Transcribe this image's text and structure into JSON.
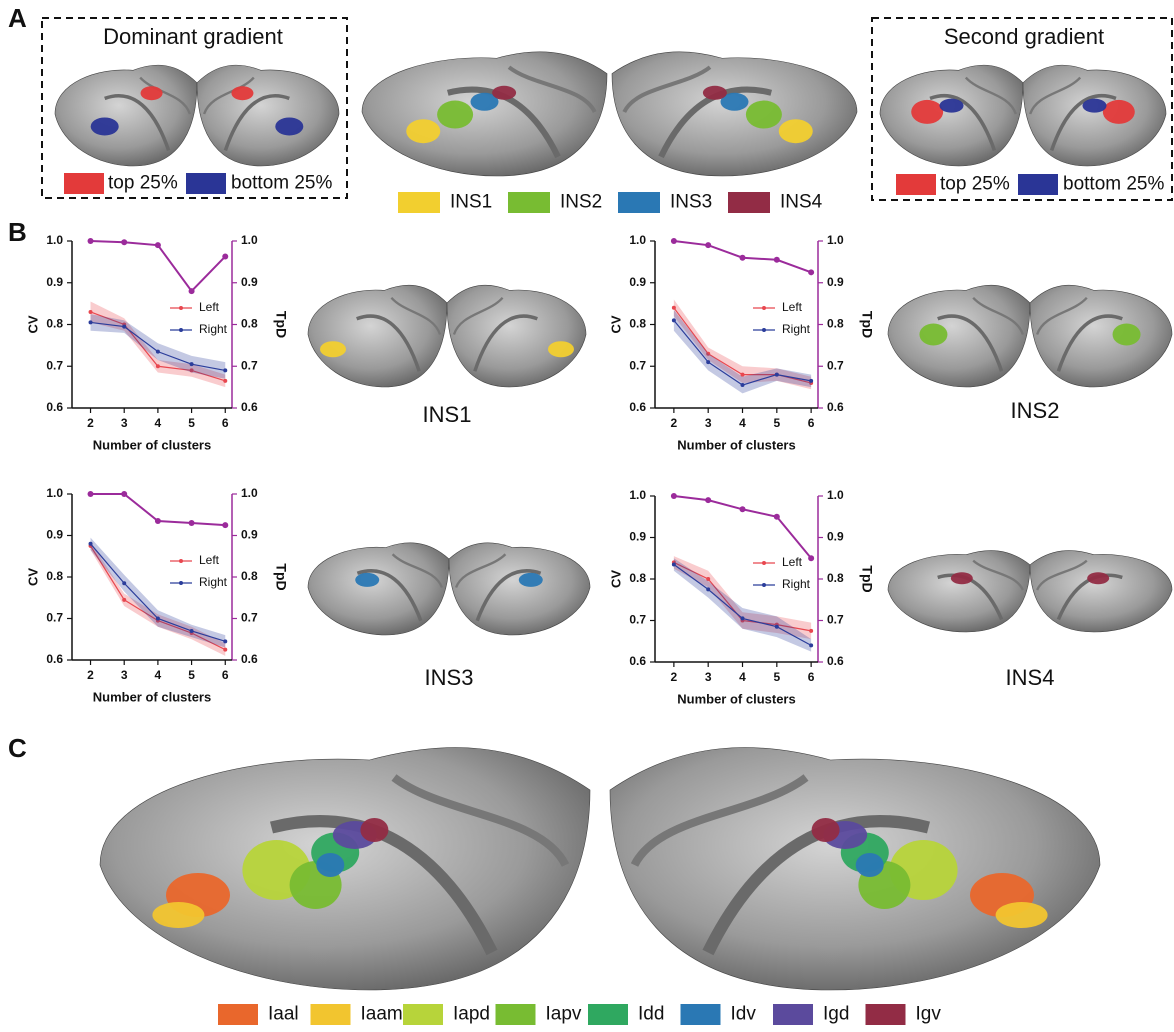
{
  "panel_labels": [
    "A",
    "B",
    "C"
  ],
  "panel_a": {
    "dominant": {
      "title": "Dominant gradient",
      "legend": [
        {
          "name": "top 25%",
          "color": "#e33a3a"
        },
        {
          "name": "bottom 25%",
          "color": "#2a3596"
        }
      ]
    },
    "second": {
      "title": "Second gradient",
      "legend": [
        {
          "name": "top 25%",
          "color": "#e33a3a"
        },
        {
          "name": "bottom 25%",
          "color": "#2a3596"
        }
      ]
    },
    "ins_legend": [
      {
        "name": "INS1",
        "color": "#f2cf2f"
      },
      {
        "name": "INS2",
        "color": "#78bc32"
      },
      {
        "name": "INS3",
        "color": "#2a78b4"
      },
      {
        "name": "INS4",
        "color": "#922c45"
      }
    ]
  },
  "panel_b_labels": [
    "INS1",
    "INS2",
    "INS3",
    "INS4"
  ],
  "chart_data": [
    {
      "type": "line",
      "x": [
        2,
        3,
        4,
        5,
        6
      ],
      "xlim": [
        1.45,
        6.2
      ],
      "xticks": [
        2,
        3,
        4,
        5,
        6
      ],
      "xlabel": "Number of clusters",
      "ylabel": "CV",
      "ylim": [
        0.6,
        1.0
      ],
      "yticks": [
        0.6,
        0.7,
        0.8,
        0.9,
        {
          "value": 1.0,
          "label": "1.0"
        }
      ],
      "y2label": "TpD",
      "y2lim": [
        0.6,
        1.0
      ],
      "y2ticks": [
        0.6,
        0.7,
        0.8,
        0.9,
        {
          "value": 1.0,
          "label": "1.0"
        }
      ],
      "legend": "right",
      "series": [
        {
          "name": "Left",
          "color": "#e8474f",
          "values": [
            0.83,
            0.8,
            0.7,
            0.69,
            0.665
          ],
          "error": [
            0.025,
            0.015,
            0.015,
            0.015,
            0.015
          ]
        },
        {
          "name": "Right",
          "color": "#2b3d9b",
          "values": [
            0.805,
            0.795,
            0.735,
            0.705,
            0.69
          ],
          "error": [
            0.02,
            0.015,
            0.02,
            0.02,
            0.02
          ]
        },
        {
          "color": "#9b2b9b",
          "axis": "y2",
          "values": [
            1.0,
            0.997,
            0.99,
            0.88,
            0.963
          ]
        }
      ]
    },
    {
      "type": "line",
      "x": [
        2,
        3,
        4,
        5,
        6
      ],
      "xlim": [
        1.45,
        6.2
      ],
      "xticks": [
        2,
        3,
        4,
        5,
        6
      ],
      "xlabel": "Number of clusters",
      "ylabel": "CV",
      "ylim": [
        0.6,
        1.0
      ],
      "yticks": [
        0.6,
        0.7,
        0.8,
        0.9,
        {
          "value": 1.0,
          "label": "1.0"
        }
      ],
      "y2label": "TpD",
      "y2lim": [
        0.6,
        1.0
      ],
      "y2ticks": [
        0.6,
        0.7,
        0.8,
        0.9,
        {
          "value": 1.0,
          "label": "1.0"
        }
      ],
      "legend": "right",
      "series": [
        {
          "name": "Left",
          "color": "#e8474f",
          "values": [
            0.84,
            0.73,
            0.68,
            0.68,
            0.66
          ],
          "error": [
            0.02,
            0.015,
            0.02,
            0.015,
            0.015
          ]
        },
        {
          "name": "Right",
          "color": "#2b3d9b",
          "values": [
            0.81,
            0.71,
            0.655,
            0.68,
            0.665
          ],
          "error": [
            0.025,
            0.02,
            0.02,
            0.015,
            0.015
          ]
        },
        {
          "color": "#9b2b9b",
          "axis": "y2",
          "values": [
            1.0,
            0.99,
            0.96,
            0.955,
            0.925
          ]
        }
      ]
    },
    {
      "type": "line",
      "x": [
        2,
        3,
        4,
        5,
        6
      ],
      "xlim": [
        1.45,
        6.2
      ],
      "xticks": [
        2,
        3,
        4,
        5,
        6
      ],
      "xlabel": "Number of clusters",
      "ylabel": "CV",
      "ylim": [
        0.6,
        1.0
      ],
      "yticks": [
        0.6,
        0.7,
        0.8,
        0.9,
        {
          "value": 1.0,
          "label": "1.0"
        }
      ],
      "y2label": "TpD",
      "y2lim": [
        0.6,
        1.0
      ],
      "y2ticks": [
        0.6,
        0.7,
        0.8,
        0.9,
        {
          "value": 1.0,
          "label": "1.0"
        }
      ],
      "legend": "right",
      "series": [
        {
          "name": "Left",
          "color": "#e8474f",
          "values": [
            0.875,
            0.745,
            0.695,
            0.665,
            0.625
          ],
          "error": [
            0.01,
            0.015,
            0.015,
            0.015,
            0.015
          ]
        },
        {
          "name": "Right",
          "color": "#2b3d9b",
          "values": [
            0.88,
            0.785,
            0.7,
            0.67,
            0.645
          ],
          "error": [
            0.015,
            0.02,
            0.02,
            0.015,
            0.015
          ]
        },
        {
          "color": "#9b2b9b",
          "axis": "y2",
          "values": [
            1.0,
            1.0,
            0.935,
            0.93,
            0.925
          ]
        }
      ]
    },
    {
      "type": "line",
      "x": [
        2,
        3,
        4,
        5,
        6
      ],
      "xlim": [
        1.45,
        6.2
      ],
      "xticks": [
        2,
        3,
        4,
        5,
        6
      ],
      "xlabel": "Number of clusters",
      "ylabel": "CV",
      "ylim": [
        0.6,
        1.0
      ],
      "yticks": [
        0.6,
        0.7,
        0.8,
        0.9,
        {
          "value": 1.0,
          "label": "1.0"
        }
      ],
      "y2label": "TpD",
      "y2lim": [
        0.6,
        1.0
      ],
      "y2ticks": [
        0.6,
        0.7,
        0.8,
        0.9,
        {
          "value": 1.0,
          "label": "1.0"
        }
      ],
      "legend": "right",
      "series": [
        {
          "name": "Left",
          "color": "#e8474f",
          "values": [
            0.84,
            0.8,
            0.7,
            0.69,
            0.675
          ],
          "error": [
            0.015,
            0.02,
            0.02,
            0.02,
            0.02
          ]
        },
        {
          "name": "Right",
          "color": "#2b3d9b",
          "values": [
            0.835,
            0.775,
            0.705,
            0.685,
            0.64
          ],
          "error": [
            0.015,
            0.02,
            0.025,
            0.025,
            0.015
          ]
        },
        {
          "color": "#9b2b9b",
          "axis": "y2",
          "values": [
            1.0,
            0.99,
            0.968,
            0.95,
            0.85
          ]
        }
      ]
    }
  ],
  "panel_c_legend": [
    {
      "name": "Iaal",
      "color": "#e9672c"
    },
    {
      "name": "Iaam",
      "color": "#f2c52f"
    },
    {
      "name": "Iapd",
      "color": "#b7d43a"
    },
    {
      "name": "Iapv",
      "color": "#78bc32"
    },
    {
      "name": "Idd",
      "color": "#2fa860"
    },
    {
      "name": "Idv",
      "color": "#2a78b4"
    },
    {
      "name": "Igd",
      "color": "#5b4a9d"
    },
    {
      "name": "Igv",
      "color": "#922c45"
    }
  ]
}
